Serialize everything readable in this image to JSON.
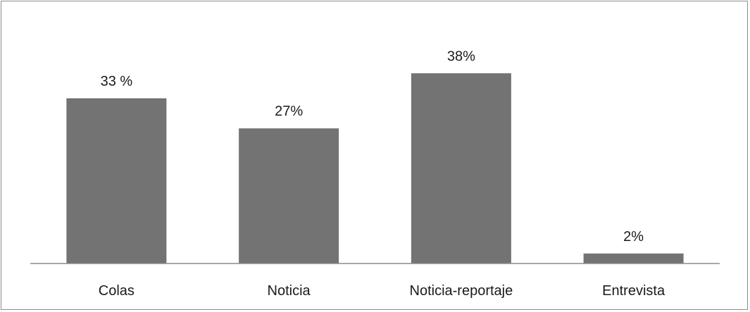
{
  "chart_data": {
    "type": "bar",
    "categories": [
      "Colas",
      "Noticia",
      "Noticia-reportaje",
      "Entrevista"
    ],
    "values": [
      33,
      27,
      38,
      2
    ],
    "data_labels": [
      "33 %",
      "27%",
      "38%",
      "2%"
    ],
    "title": "",
    "xlabel": "",
    "ylabel": "",
    "ylim": [
      0,
      40
    ],
    "grid": false,
    "legend": "none",
    "bar_color": "#737373",
    "axis_color": "#8c8c8c"
  }
}
